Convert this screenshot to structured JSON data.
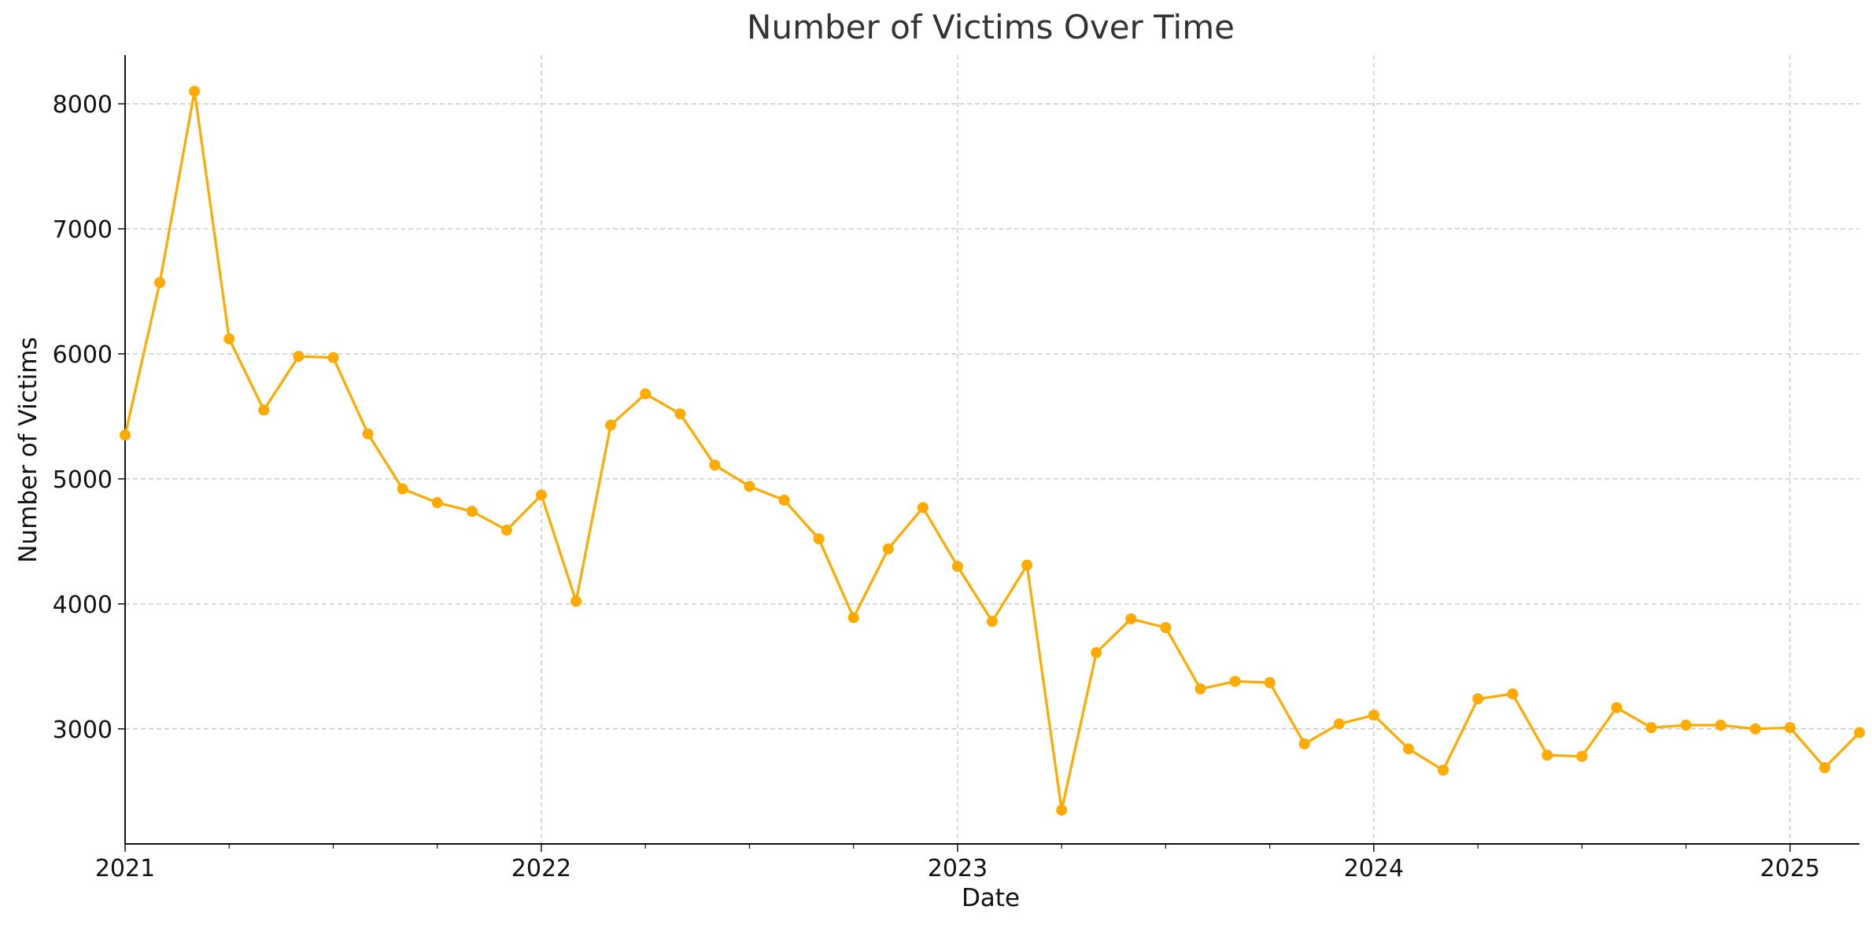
{
  "chart_data": {
    "type": "line",
    "title": "Number of Victims Over Time",
    "xlabel": "Date",
    "ylabel": "Number of Victims",
    "x_ticks": [
      "2021",
      "2022",
      "2023",
      "2024",
      "2025"
    ],
    "y_ticks": [
      3000,
      4000,
      5000,
      6000,
      7000,
      8000
    ],
    "xlim": [
      "2021-01",
      "2025-03"
    ],
    "ylim": [
      2080,
      8390
    ],
    "grid": true,
    "legend": "none",
    "series": [
      {
        "color": "#FFAA00",
        "x": [
          "2021-01",
          "2021-02",
          "2021-03",
          "2021-04",
          "2021-05",
          "2021-06",
          "2021-07",
          "2021-08",
          "2021-09",
          "2021-10",
          "2021-11",
          "2021-12",
          "2022-01",
          "2022-02",
          "2022-03",
          "2022-04",
          "2022-05",
          "2022-06",
          "2022-07",
          "2022-08",
          "2022-09",
          "2022-10",
          "2022-11",
          "2022-12",
          "2023-01",
          "2023-02",
          "2023-03",
          "2023-04",
          "2023-05",
          "2023-06",
          "2023-07",
          "2023-08",
          "2023-09",
          "2023-10",
          "2023-11",
          "2023-12",
          "2024-01",
          "2024-02",
          "2024-03",
          "2024-04",
          "2024-05",
          "2024-06",
          "2024-07",
          "2024-08",
          "2024-09",
          "2024-10",
          "2024-11",
          "2024-12",
          "2025-01",
          "2025-02",
          "2025-03"
        ],
        "values": [
          5350,
          6570,
          8100,
          6120,
          5550,
          5980,
          5970,
          5360,
          4920,
          4810,
          4740,
          4590,
          4870,
          4020,
          5430,
          5680,
          5520,
          5110,
          4940,
          4830,
          4520,
          3890,
          4440,
          4770,
          4300,
          3860,
          4310,
          2350,
          3610,
          3880,
          3810,
          3320,
          3380,
          3370,
          2880,
          3040,
          3110,
          2840,
          2670,
          3240,
          3280,
          2790,
          2780,
          3170,
          3010,
          3030,
          3030,
          3000,
          3010,
          2690,
          2970
        ]
      }
    ]
  }
}
